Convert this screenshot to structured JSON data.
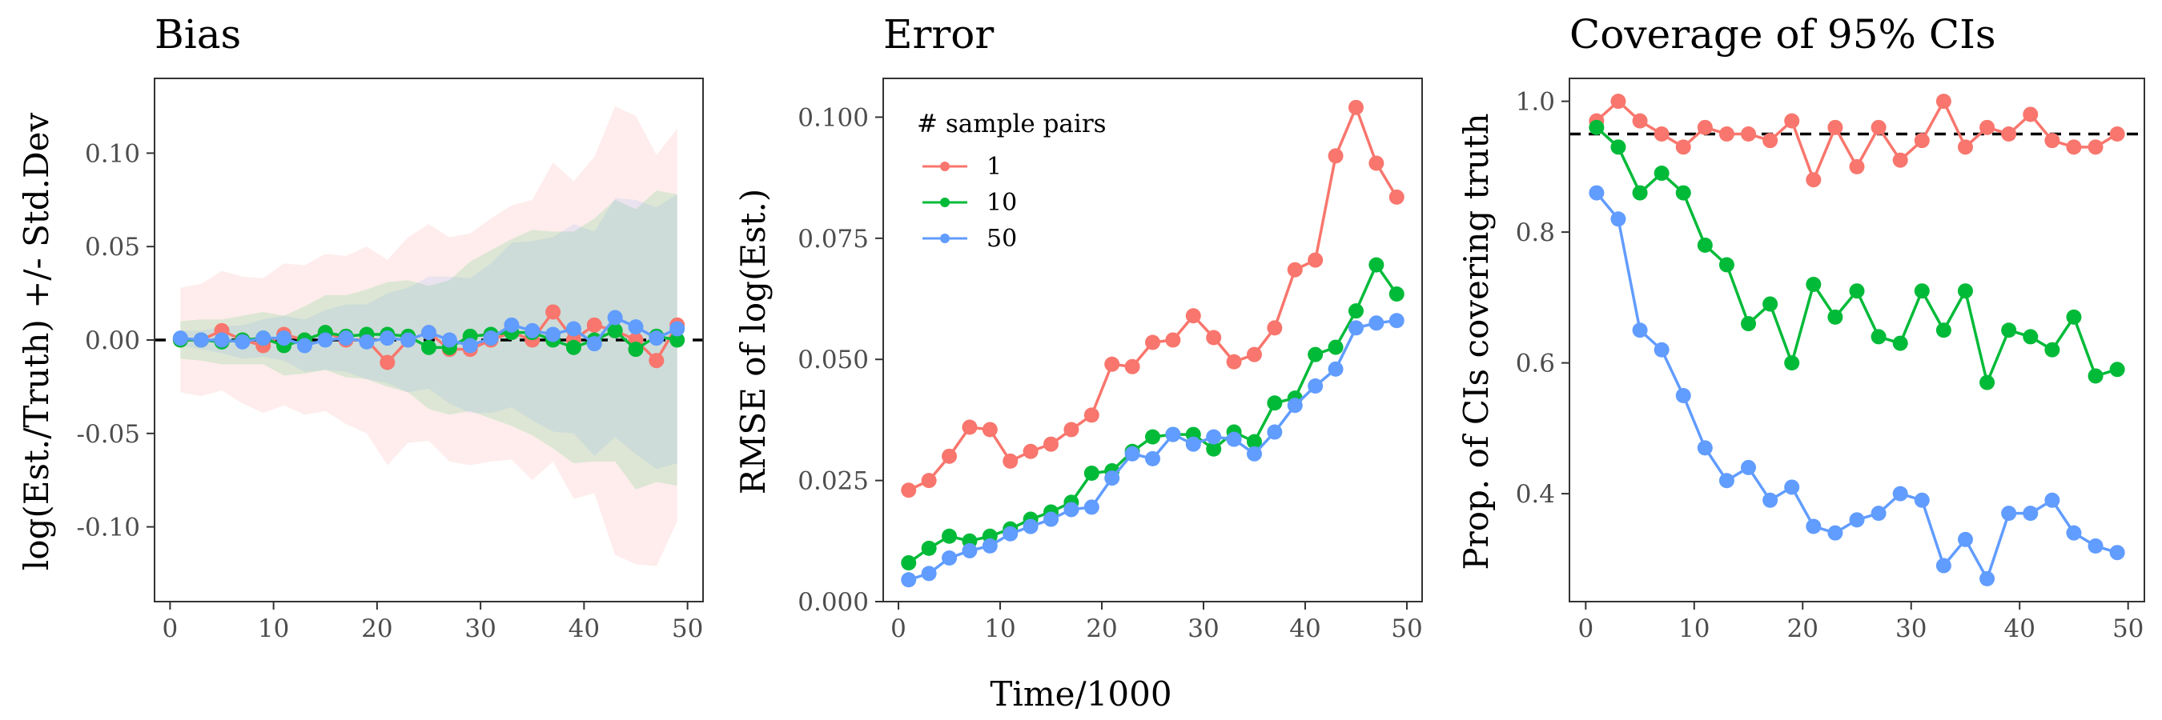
{
  "figure": {
    "xlabel": "Time/1000",
    "colors": {
      "1": "#F8766D",
      "10": "#00BA38",
      "50": "#619CFF"
    },
    "legend": {
      "title": "# sample pairs",
      "placement": "top-left of Error panel"
    }
  },
  "chart_data": [
    {
      "type": "line",
      "title": "Bias",
      "ylabel": "log(Est./Truth) +/- Std.Dev",
      "xlim": [
        -1.5,
        51.5
      ],
      "ylim": [
        -0.14,
        0.14
      ],
      "xticks": [
        0,
        10,
        20,
        30,
        40,
        50
      ],
      "yticks": [
        -0.1,
        -0.05,
        0.0,
        0.05,
        0.1
      ],
      "ytick_labels": [
        "-0.10",
        "-0.05",
        "0.00",
        "0.05",
        "0.10"
      ],
      "reference_line": 0.0,
      "grid": false,
      "x": [
        1,
        3,
        5,
        7,
        9,
        11,
        13,
        15,
        17,
        19,
        21,
        23,
        25,
        27,
        29,
        31,
        33,
        35,
        37,
        39,
        41,
        43,
        45,
        47,
        49
      ],
      "series": [
        {
          "name": "1",
          "values": [
            0.0,
            0.0,
            0.005,
            0.0,
            -0.003,
            0.003,
            0.0,
            0.004,
            0.0,
            0.0,
            -0.012,
            0.0,
            0.004,
            -0.005,
            -0.005,
            0.0,
            0.004,
            0.0,
            0.015,
            0.0,
            0.008,
            0.005,
            0.0,
            -0.011,
            0.008
          ],
          "sd": [
            0.028,
            0.03,
            0.032,
            0.034,
            0.036,
            0.038,
            0.04,
            0.042,
            0.045,
            0.05,
            0.055,
            0.055,
            0.058,
            0.06,
            0.062,
            0.065,
            0.068,
            0.075,
            0.08,
            0.085,
            0.09,
            0.12,
            0.12,
            0.11,
            0.105
          ]
        },
        {
          "name": "10",
          "values": [
            0.0,
            0.0,
            -0.001,
            0.0,
            0.001,
            -0.003,
            0.0,
            0.004,
            0.002,
            0.003,
            0.003,
            0.002,
            -0.004,
            -0.004,
            0.002,
            0.003,
            0.004,
            0.004,
            0.0,
            -0.004,
            0.0,
            0.005,
            -0.005,
            0.002,
            0.0
          ],
          "sd": [
            0.01,
            0.011,
            0.012,
            0.013,
            0.014,
            0.016,
            0.018,
            0.02,
            0.022,
            0.024,
            0.028,
            0.03,
            0.033,
            0.036,
            0.04,
            0.045,
            0.05,
            0.055,
            0.058,
            0.062,
            0.065,
            0.07,
            0.075,
            0.078,
            0.078
          ]
        },
        {
          "name": "50",
          "values": [
            0.001,
            0.0,
            0.0,
            -0.001,
            0.001,
            0.001,
            -0.003,
            0.0,
            0.001,
            -0.001,
            0.001,
            0.0,
            0.004,
            0.0,
            -0.003,
            0.001,
            0.008,
            0.005,
            0.003,
            0.006,
            -0.002,
            0.012,
            0.007,
            0.001,
            0.006
          ],
          "sd": [
            0.004,
            0.005,
            0.007,
            0.009,
            0.01,
            0.012,
            0.014,
            0.016,
            0.018,
            0.02,
            0.024,
            0.028,
            0.03,
            0.034,
            0.036,
            0.04,
            0.044,
            0.048,
            0.052,
            0.056,
            0.06,
            0.064,
            0.068,
            0.07,
            0.072
          ]
        }
      ]
    },
    {
      "type": "line",
      "title": "Error",
      "ylabel": "RMSE of log(Est.)",
      "xlim": [
        -1.5,
        51.5
      ],
      "ylim": [
        0.0,
        0.108
      ],
      "xticks": [
        0,
        10,
        20,
        30,
        40,
        50
      ],
      "yticks": [
        0.0,
        0.025,
        0.05,
        0.075,
        0.1
      ],
      "ytick_labels": [
        "0.000",
        "0.025",
        "0.050",
        "0.075",
        "0.100"
      ],
      "grid": false,
      "x": [
        1,
        3,
        5,
        7,
        9,
        11,
        13,
        15,
        17,
        19,
        21,
        23,
        25,
        27,
        29,
        31,
        33,
        35,
        37,
        39,
        41,
        43,
        45,
        47,
        49
      ],
      "series": [
        {
          "name": "1",
          "values": [
            0.023,
            0.025,
            0.03,
            0.036,
            0.0355,
            0.029,
            0.031,
            0.0325,
            0.0355,
            0.0385,
            0.049,
            0.0485,
            0.0535,
            0.054,
            0.059,
            0.0545,
            0.0495,
            0.051,
            0.0565,
            0.0685,
            0.0705,
            0.092,
            0.102,
            0.0905,
            0.0835
          ]
        },
        {
          "name": "10",
          "values": [
            0.008,
            0.011,
            0.0135,
            0.0125,
            0.0135,
            0.015,
            0.017,
            0.0185,
            0.0205,
            0.0265,
            0.027,
            0.031,
            0.034,
            0.0345,
            0.0345,
            0.0315,
            0.035,
            0.033,
            0.041,
            0.042,
            0.051,
            0.0525,
            0.06,
            0.0695,
            0.0635
          ]
        },
        {
          "name": "50",
          "values": [
            0.0045,
            0.0058,
            0.009,
            0.0105,
            0.0115,
            0.014,
            0.0155,
            0.017,
            0.019,
            0.0195,
            0.0255,
            0.0305,
            0.0295,
            0.0345,
            0.0325,
            0.034,
            0.0335,
            0.0305,
            0.035,
            0.0405,
            0.0445,
            0.048,
            0.0565,
            0.0575,
            0.058
          ]
        }
      ]
    },
    {
      "type": "line",
      "title": "Coverage of 95% CIs",
      "ylabel": "Prop. of CIs covering truth",
      "xlim": [
        -1.5,
        51.5
      ],
      "ylim": [
        0.235,
        1.035
      ],
      "xticks": [
        0,
        10,
        20,
        30,
        40,
        50
      ],
      "yticks": [
        0.4,
        0.6,
        0.8,
        1.0
      ],
      "ytick_labels": [
        "0.4",
        "0.6",
        "0.8",
        "1.0"
      ],
      "reference_line": 0.95,
      "grid": false,
      "x": [
        1,
        3,
        5,
        7,
        9,
        11,
        13,
        15,
        17,
        19,
        21,
        23,
        25,
        27,
        29,
        31,
        33,
        35,
        37,
        39,
        41,
        43,
        45,
        47,
        49
      ],
      "series": [
        {
          "name": "1",
          "values": [
            0.97,
            1.0,
            0.97,
            0.95,
            0.93,
            0.96,
            0.95,
            0.95,
            0.94,
            0.97,
            0.88,
            0.96,
            0.9,
            0.96,
            0.91,
            0.94,
            1.0,
            0.93,
            0.96,
            0.95,
            0.98,
            0.94,
            0.93,
            0.93,
            0.95
          ]
        },
        {
          "name": "10",
          "values": [
            0.96,
            0.93,
            0.86,
            0.89,
            0.86,
            0.78,
            0.75,
            0.66,
            0.69,
            0.6,
            0.72,
            0.67,
            0.71,
            0.64,
            0.63,
            0.71,
            0.65,
            0.71,
            0.57,
            0.65,
            0.64,
            0.62,
            0.67,
            0.58,
            0.59
          ]
        },
        {
          "name": "50",
          "values": [
            0.86,
            0.82,
            0.65,
            0.62,
            0.55,
            0.47,
            0.42,
            0.44,
            0.39,
            0.41,
            0.35,
            0.34,
            0.36,
            0.37,
            0.4,
            0.39,
            0.29,
            0.33,
            0.27,
            0.37,
            0.37,
            0.39,
            0.34,
            0.32,
            0.31
          ]
        }
      ]
    }
  ]
}
